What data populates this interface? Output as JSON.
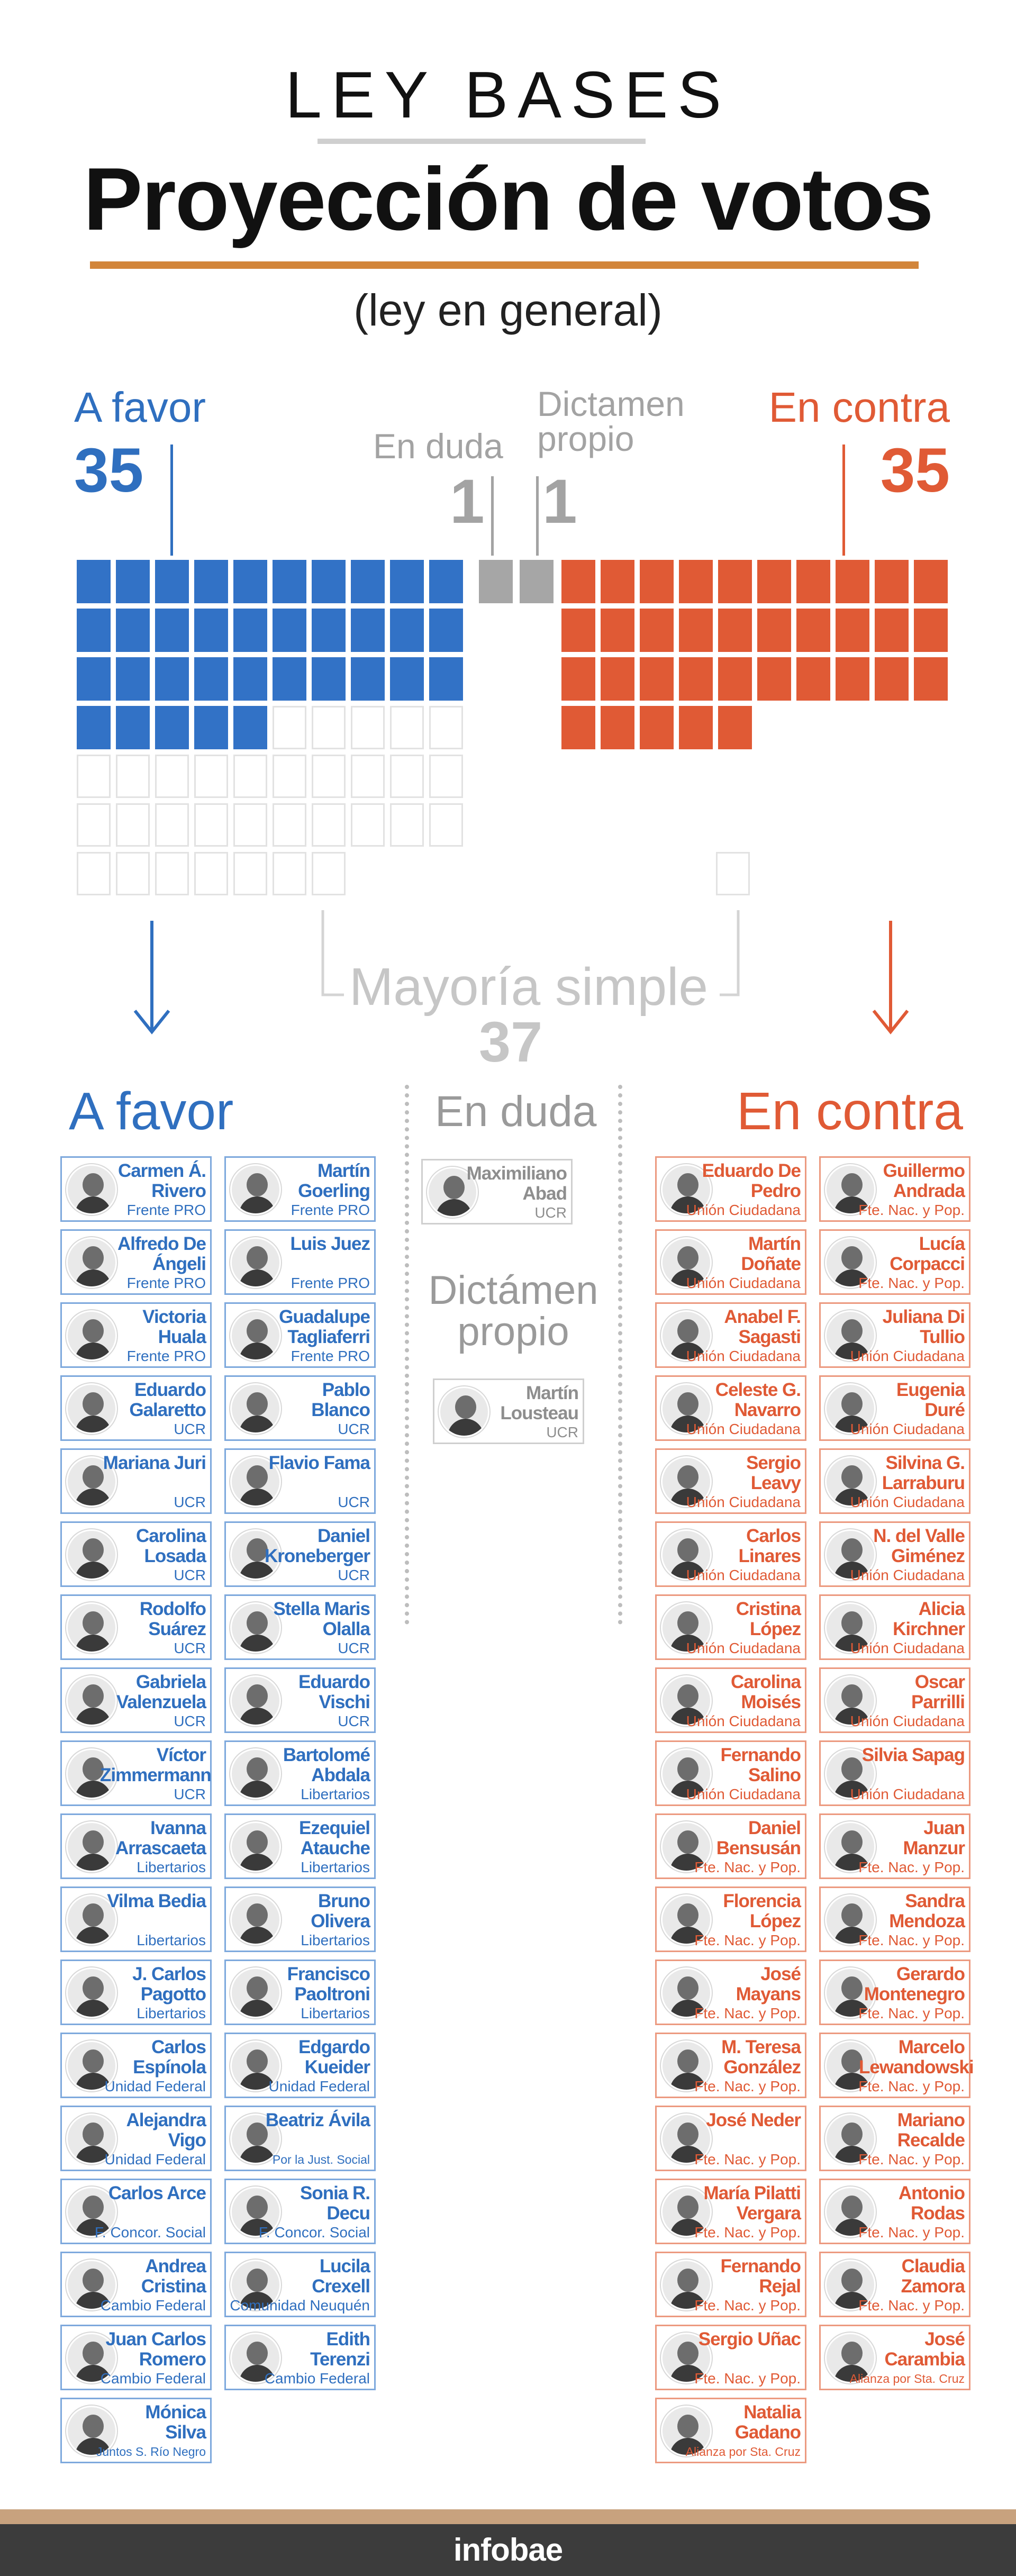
{
  "header": {
    "kicker": "LEY BASES",
    "title": "Proyección de votos",
    "subtitle": "(ley en general)"
  },
  "summary": {
    "favor": {
      "label": "A favor",
      "count": "35"
    },
    "contra": {
      "label": "En contra",
      "count": "35"
    },
    "duda": {
      "label": "En duda",
      "count": "1"
    },
    "dictamen": {
      "label": "Dictamen propio",
      "count": "1"
    },
    "mayoria": {
      "label": "Mayoría simple",
      "count": "37"
    }
  },
  "colors": {
    "favor": "#3272c6",
    "contra": "#e05a35",
    "neutral": "#a6a6a6",
    "accent": "#d2853a"
  },
  "chart_data": {
    "type": "waffle",
    "series": [
      {
        "name": "A favor",
        "value": 35
      },
      {
        "name": "En duda",
        "value": 1
      },
      {
        "name": "Dictamen propio",
        "value": 1
      },
      {
        "name": "En contra",
        "value": 35
      }
    ],
    "total_seats": 72,
    "majority": 37
  },
  "sections": {
    "favor_title": "A favor",
    "duda_title": "En duda",
    "dictamen_title": "Dictámen propio",
    "contra_title": "En contra"
  },
  "favor_list": [
    {
      "name": "Carmen Á. Rivero",
      "party": "Frente PRO"
    },
    {
      "name": "Martín Goerling",
      "party": "Frente PRO"
    },
    {
      "name": "Alfredo De Ángeli",
      "party": "Frente PRO"
    },
    {
      "name": "Luis Juez",
      "party": "Frente PRO"
    },
    {
      "name": "Victoria Huala",
      "party": "Frente PRO"
    },
    {
      "name": "Guadalupe Tagliaferri",
      "party": "Frente PRO"
    },
    {
      "name": "Eduardo Galaretto",
      "party": "UCR"
    },
    {
      "name": "Pablo Blanco",
      "party": "UCR"
    },
    {
      "name": "Mariana Juri",
      "party": "UCR"
    },
    {
      "name": "Flavio Fama",
      "party": "UCR"
    },
    {
      "name": "Carolina Losada",
      "party": "UCR"
    },
    {
      "name": "Daniel Kroneberger",
      "party": "UCR"
    },
    {
      "name": "Rodolfo Suárez",
      "party": "UCR"
    },
    {
      "name": "Stella Maris Olalla",
      "party": "UCR"
    },
    {
      "name": "Gabriela Valenzuela",
      "party": "UCR"
    },
    {
      "name": "Eduardo Vischi",
      "party": "UCR"
    },
    {
      "name": "Víctor Zimmermann",
      "party": "UCR"
    },
    {
      "name": "Bartolomé Abdala",
      "party": "Libertarios"
    },
    {
      "name": "Ivanna Arrascaeta",
      "party": "Libertarios"
    },
    {
      "name": "Ezequiel Atauche",
      "party": "Libertarios"
    },
    {
      "name": "Vilma Bedia",
      "party": "Libertarios"
    },
    {
      "name": "Bruno Olivera",
      "party": "Libertarios"
    },
    {
      "name": "J. Carlos Pagotto",
      "party": "Libertarios"
    },
    {
      "name": "Francisco Paoltroni",
      "party": "Libertarios"
    },
    {
      "name": "Carlos Espínola",
      "party": "Unidad Federal"
    },
    {
      "name": "Edgardo Kueider",
      "party": "Unidad Federal"
    },
    {
      "name": "Alejandra Vigo",
      "party": "Unidad Federal"
    },
    {
      "name": "Beatriz Ávila",
      "party": "Por la Just. Social"
    },
    {
      "name": "Carlos Arce",
      "party": "F. Concor. Social"
    },
    {
      "name": "Sonia R. Decu",
      "party": "F. Concor. Social"
    },
    {
      "name": "Andrea Cristina",
      "party": "Cambio Federal"
    },
    {
      "name": "Lucila Crexell",
      "party": "Comunidad Neuquén"
    },
    {
      "name": "Juan Carlos Romero",
      "party": "Cambio Federal"
    },
    {
      "name": "Edith Terenzi",
      "party": "Cambio Federal"
    },
    {
      "name": "Mónica Silva",
      "party": "Juntos S. Río Negro"
    }
  ],
  "duda_list": [
    {
      "name": "Maximiliano Abad",
      "party": "UCR"
    }
  ],
  "dictamen_list": [
    {
      "name": "Martín Lousteau",
      "party": "UCR"
    }
  ],
  "contra_list": [
    {
      "name": "Eduardo De Pedro",
      "party": "Unión Ciudadana"
    },
    {
      "name": "Guillermo Andrada",
      "party": "Fte. Nac. y Pop."
    },
    {
      "name": "Martín Doñate",
      "party": "Unión Ciudadana"
    },
    {
      "name": "Lucía Corpacci",
      "party": "Fte. Nac. y Pop."
    },
    {
      "name": "Anabel F. Sagasti",
      "party": "Unión Ciudadana"
    },
    {
      "name": "Juliana Di Tullio",
      "party": "Unión Ciudadana"
    },
    {
      "name": "Celeste G. Navarro",
      "party": "Unión Ciudadana"
    },
    {
      "name": "Eugenia Duré",
      "party": "Unión Ciudadana"
    },
    {
      "name": "Sergio Leavy",
      "party": "Unión Ciudadana"
    },
    {
      "name": "Silvina G. Larraburu",
      "party": "Unión Ciudadana"
    },
    {
      "name": "Carlos Linares",
      "party": "Unión Ciudadana"
    },
    {
      "name": "N. del Valle Giménez",
      "party": "Unión Ciudadana"
    },
    {
      "name": "Cristina López",
      "party": "Unión Ciudadana"
    },
    {
      "name": "Alicia Kirchner",
      "party": "Unión Ciudadana"
    },
    {
      "name": "Carolina Moisés",
      "party": "Unión Ciudadana"
    },
    {
      "name": "Oscar Parrilli",
      "party": "Unión Ciudadana"
    },
    {
      "name": "Fernando Salino",
      "party": "Unión Ciudadana"
    },
    {
      "name": "Silvia Sapag",
      "party": "Unión Ciudadana"
    },
    {
      "name": "Daniel Bensusán",
      "party": "Fte. Nac. y Pop."
    },
    {
      "name": "Juan Manzur",
      "party": "Fte. Nac. y Pop."
    },
    {
      "name": "Florencia López",
      "party": "Fte. Nac. y Pop."
    },
    {
      "name": "Sandra Mendoza",
      "party": "Fte. Nac. y Pop."
    },
    {
      "name": "José Mayans",
      "party": "Fte. Nac. y Pop."
    },
    {
      "name": "Gerardo Montenegro",
      "party": "Fte. Nac. y Pop."
    },
    {
      "name": "M. Teresa González",
      "party": "Fte. Nac. y Pop."
    },
    {
      "name": "Marcelo Lewandowski",
      "party": "Fte. Nac. y Pop."
    },
    {
      "name": "José Neder",
      "party": "Fte. Nac. y Pop."
    },
    {
      "name": "Mariano Recalde",
      "party": "Fte. Nac. y Pop."
    },
    {
      "name": "María Pilatti Vergara",
      "party": "Fte. Nac. y Pop."
    },
    {
      "name": "Antonio Rodas",
      "party": "Fte. Nac. y Pop."
    },
    {
      "name": "Fernando Rejal",
      "party": "Fte. Nac. y Pop."
    },
    {
      "name": "Claudia Zamora",
      "party": "Fte. Nac. y Pop."
    },
    {
      "name": "Sergio Uñac",
      "party": "Fte. Nac. y Pop."
    },
    {
      "name": "José Carambia",
      "party": "Alianza por Sta. Cruz"
    },
    {
      "name": "Natalia Gadano",
      "party": "Alianza por Sta. Cruz"
    }
  ],
  "footer": {
    "brand": "infobae"
  }
}
